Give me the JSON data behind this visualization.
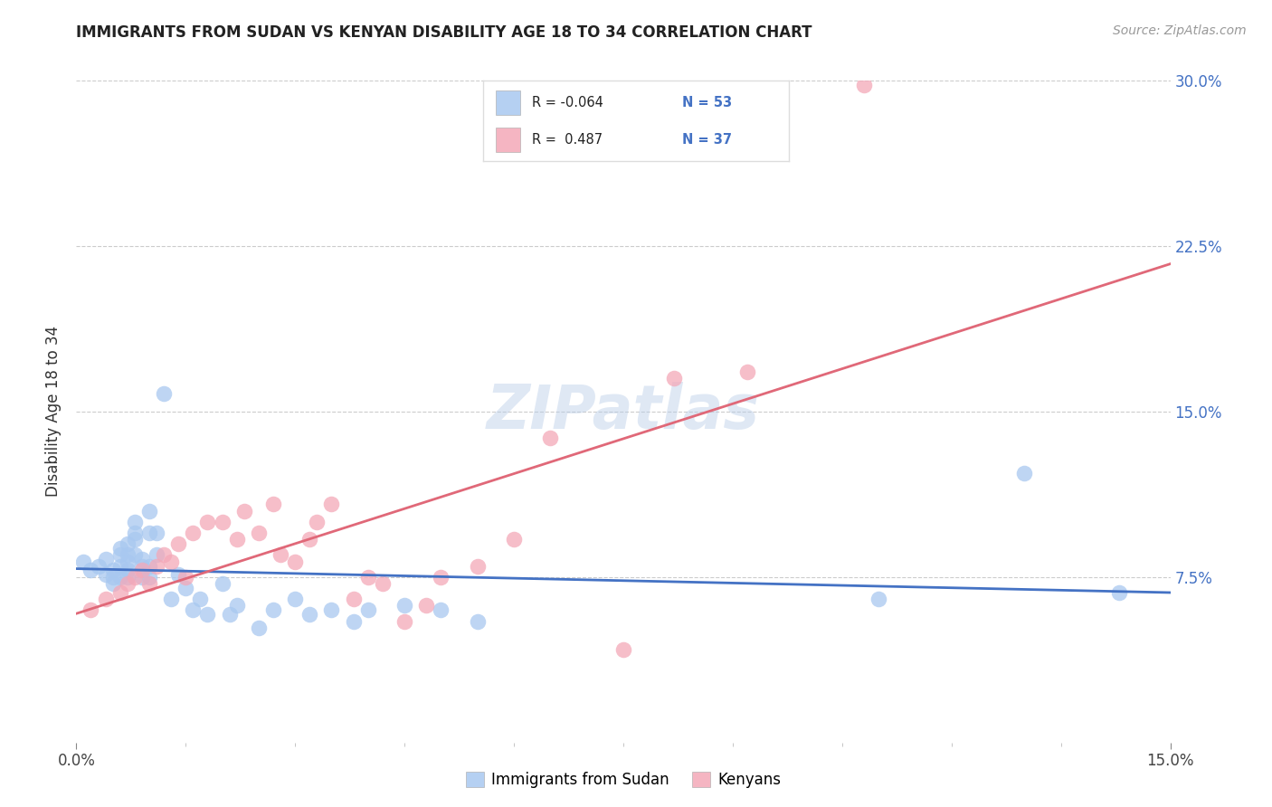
{
  "title": "IMMIGRANTS FROM SUDAN VS KENYAN DISABILITY AGE 18 TO 34 CORRELATION CHART",
  "source": "Source: ZipAtlas.com",
  "ylabel": "Disability Age 18 to 34",
  "xlim": [
    0.0,
    0.15
  ],
  "ylim": [
    0.0,
    0.3
  ],
  "xtick_positions": [
    0.0,
    0.15
  ],
  "xtick_labels": [
    "0.0%",
    "15.0%"
  ],
  "ytick_positions": [
    0.075,
    0.15,
    0.225,
    0.3
  ],
  "ytick_labels": [
    "7.5%",
    "15.0%",
    "22.5%",
    "30.0%"
  ],
  "grid_yticks": [
    0.075,
    0.15,
    0.225,
    0.3
  ],
  "legend_x_bottom": [
    "Immigrants from Sudan",
    "Kenyans"
  ],
  "sudan_R": "-0.064",
  "sudan_N": "53",
  "kenya_R": "0.487",
  "kenya_N": "37",
  "sudan_color": "#A8C8F0",
  "kenya_color": "#F4A8B8",
  "sudan_line_color": "#4472C4",
  "kenya_line_color": "#E06878",
  "watermark": "ZIPatlas",
  "sudan_x": [
    0.001,
    0.002,
    0.003,
    0.004,
    0.004,
    0.005,
    0.005,
    0.005,
    0.006,
    0.006,
    0.006,
    0.006,
    0.007,
    0.007,
    0.007,
    0.007,
    0.007,
    0.008,
    0.008,
    0.008,
    0.008,
    0.009,
    0.009,
    0.009,
    0.01,
    0.01,
    0.01,
    0.01,
    0.011,
    0.011,
    0.012,
    0.013,
    0.014,
    0.015,
    0.016,
    0.017,
    0.018,
    0.02,
    0.021,
    0.022,
    0.025,
    0.027,
    0.03,
    0.032,
    0.035,
    0.038,
    0.04,
    0.045,
    0.05,
    0.055,
    0.11,
    0.13,
    0.143
  ],
  "sudan_y": [
    0.082,
    0.078,
    0.08,
    0.076,
    0.083,
    0.075,
    0.078,
    0.072,
    0.088,
    0.085,
    0.08,
    0.075,
    0.09,
    0.085,
    0.082,
    0.078,
    0.075,
    0.092,
    0.1,
    0.095,
    0.085,
    0.08,
    0.075,
    0.083,
    0.105,
    0.095,
    0.08,
    0.075,
    0.095,
    0.085,
    0.158,
    0.065,
    0.076,
    0.07,
    0.06,
    0.065,
    0.058,
    0.072,
    0.058,
    0.062,
    0.052,
    0.06,
    0.065,
    0.058,
    0.06,
    0.055,
    0.06,
    0.062,
    0.06,
    0.055,
    0.065,
    0.122,
    0.068
  ],
  "kenya_x": [
    0.002,
    0.004,
    0.006,
    0.007,
    0.008,
    0.009,
    0.01,
    0.011,
    0.012,
    0.013,
    0.014,
    0.015,
    0.016,
    0.018,
    0.02,
    0.022,
    0.023,
    0.025,
    0.027,
    0.028,
    0.03,
    0.032,
    0.033,
    0.035,
    0.038,
    0.04,
    0.042,
    0.045,
    0.048,
    0.05,
    0.055,
    0.06,
    0.065,
    0.075,
    0.082,
    0.092,
    0.108
  ],
  "kenya_y": [
    0.06,
    0.065,
    0.068,
    0.072,
    0.075,
    0.078,
    0.072,
    0.08,
    0.085,
    0.082,
    0.09,
    0.075,
    0.095,
    0.1,
    0.1,
    0.092,
    0.105,
    0.095,
    0.108,
    0.085,
    0.082,
    0.092,
    0.1,
    0.108,
    0.065,
    0.075,
    0.072,
    0.055,
    0.062,
    0.075,
    0.08,
    0.092,
    0.138,
    0.042,
    0.165,
    0.168,
    0.298
  ]
}
